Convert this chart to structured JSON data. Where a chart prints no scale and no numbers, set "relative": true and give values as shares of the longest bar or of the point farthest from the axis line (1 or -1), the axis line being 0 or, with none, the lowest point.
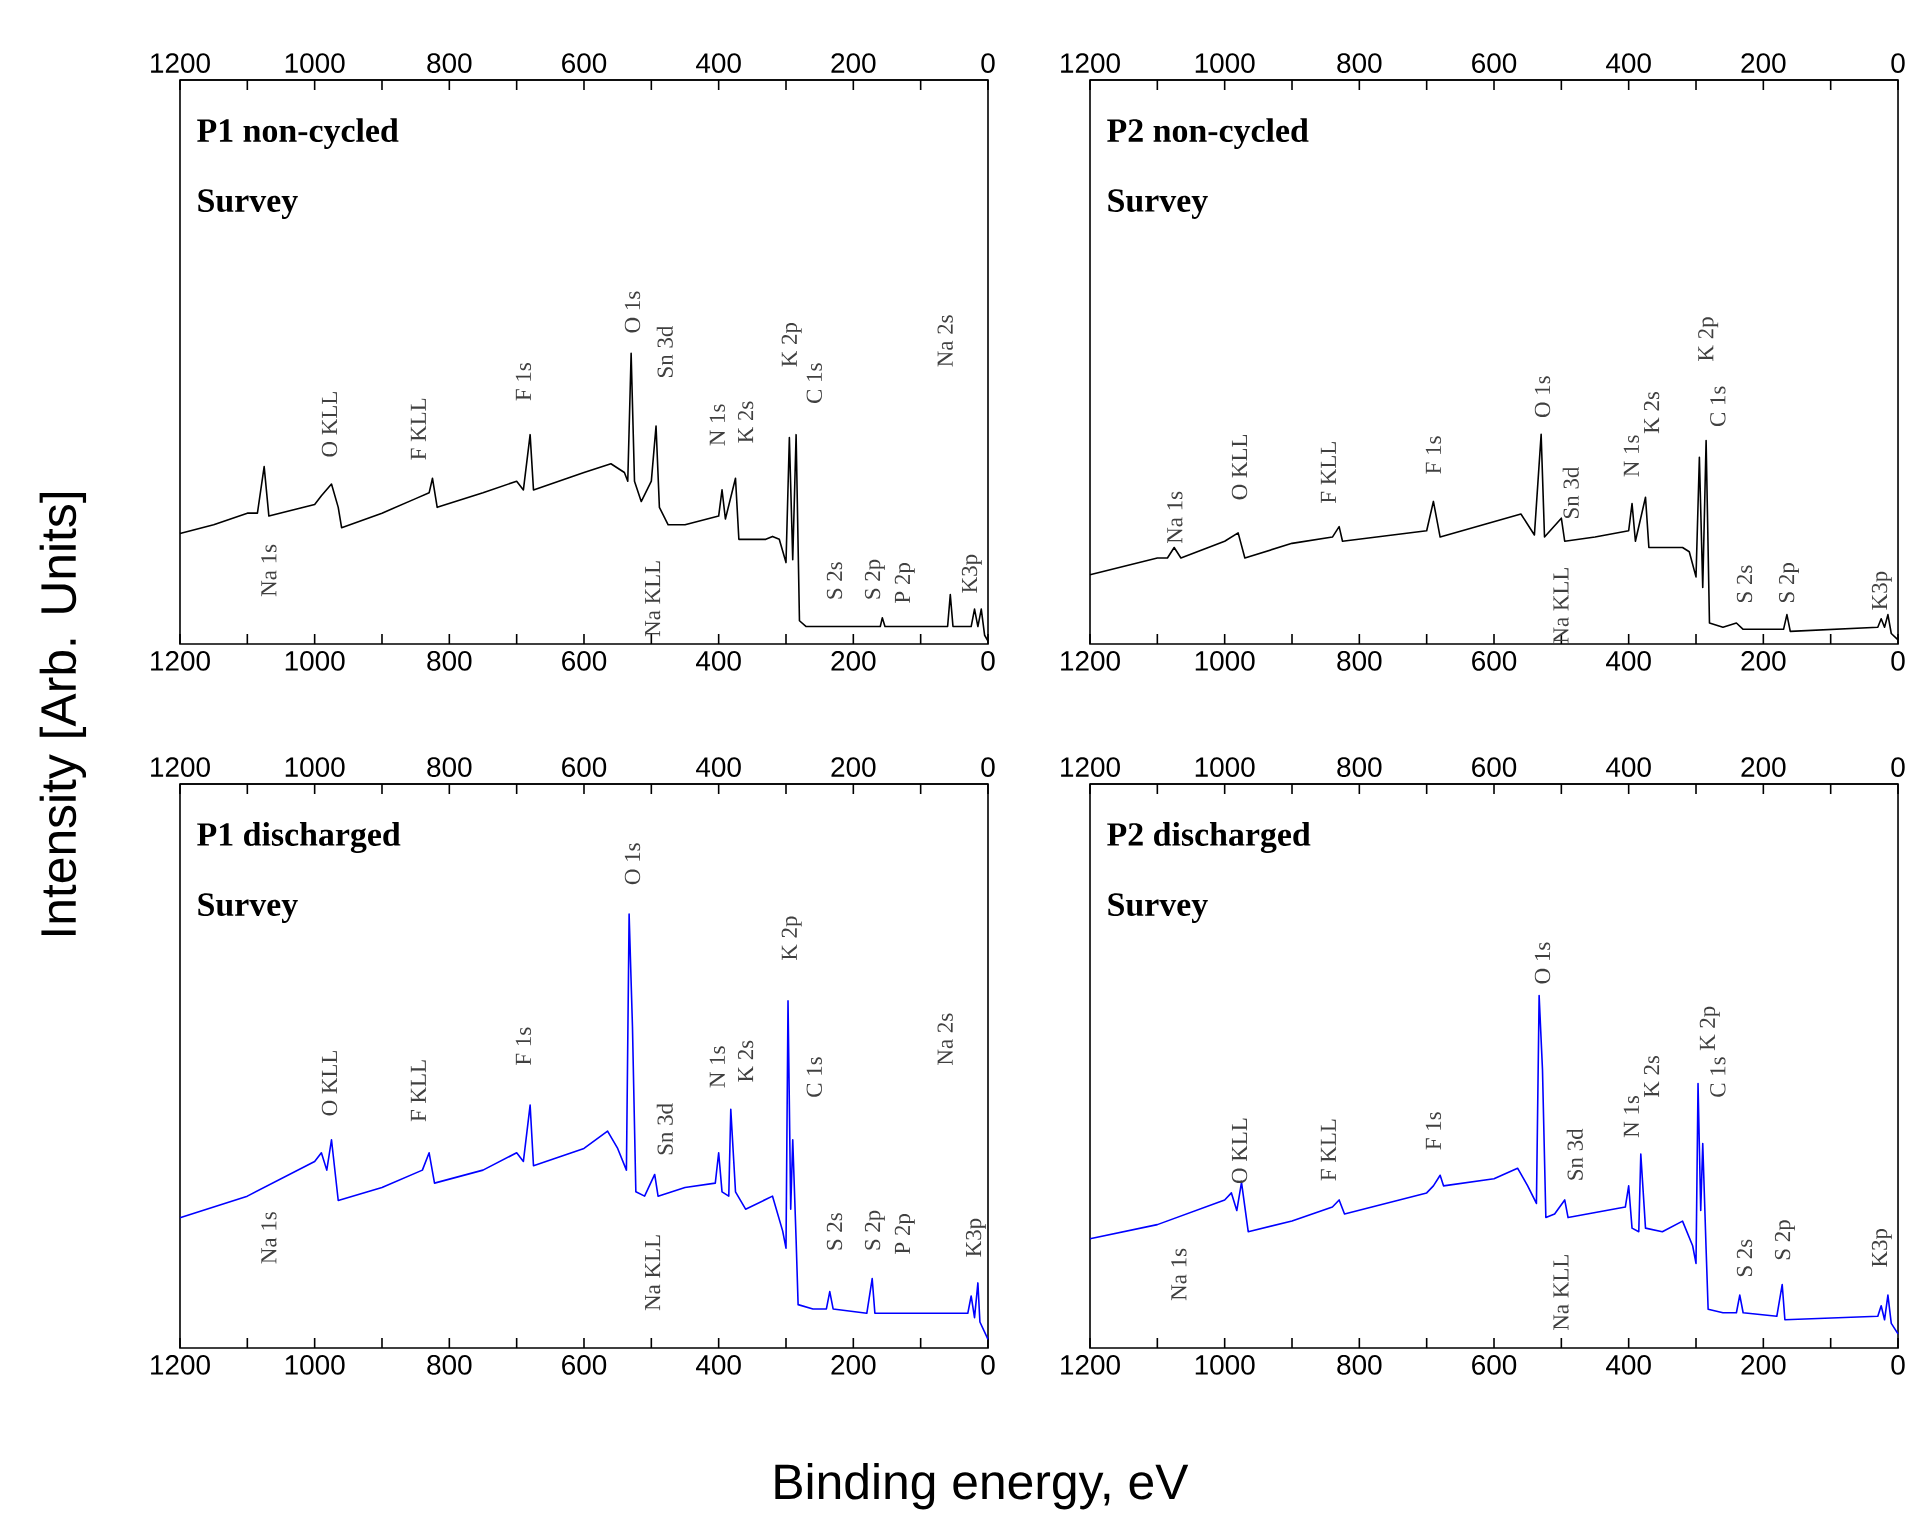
{
  "chart_data": [
    {
      "type": "line",
      "title": "P1 non-cycled",
      "subtitle": "Survey",
      "ylabel": "Intensity [Arb. Units]",
      "relative": true,
      "xlim": [
        1200,
        0
      ],
      "xticks": [
        1200,
        {
          "value": 1100,
          "label": null
        },
        1000,
        {
          "value": 900,
          "label": null
        },
        800,
        {
          "value": 700,
          "label": null
        },
        600,
        {
          "value": 500,
          "label": null
        },
        400,
        {
          "value": 300,
          "label": null
        },
        200,
        {
          "value": 100,
          "label": null
        },
        0
      ],
      "x2lim": [
        1200,
        0
      ],
      "x2ticks": [
        1200,
        {
          "value": 1100,
          "label": null
        },
        1000,
        {
          "value": 900,
          "label": null
        },
        800,
        {
          "value": 700,
          "label": null
        },
        600,
        {
          "value": 500,
          "label": null
        },
        400,
        {
          "value": 300,
          "label": null
        },
        200,
        {
          "value": 100,
          "label": null
        },
        0
      ],
      "series": [
        {
          "color": "#000000",
          "x": [
            1200,
            1150,
            1100,
            1085,
            1075,
            1068,
            1000,
            990,
            975,
            965,
            960,
            900,
            850,
            830,
            825,
            818,
            750,
            700,
            690,
            680,
            675,
            600,
            560,
            540,
            535,
            530,
            525,
            515,
            500,
            493,
            488,
            475,
            450,
            400,
            395,
            390,
            375,
            370,
            330,
            320,
            310,
            300,
            295,
            290,
            285,
            280,
            270,
            200,
            160,
            157,
            153,
            60,
            56,
            52,
            25,
            20,
            15,
            10,
            5,
            0
          ],
          "values": [
            0.38,
            0.41,
            0.45,
            0.45,
            0.61,
            0.44,
            0.48,
            0.51,
            0.55,
            0.47,
            0.4,
            0.45,
            0.5,
            0.52,
            0.57,
            0.47,
            0.52,
            0.56,
            0.53,
            0.72,
            0.53,
            0.59,
            0.62,
            0.59,
            0.56,
            1.0,
            0.56,
            0.49,
            0.56,
            0.75,
            0.47,
            0.41,
            0.41,
            0.44,
            0.53,
            0.43,
            0.57,
            0.36,
            0.36,
            0.37,
            0.36,
            0.28,
            0.71,
            0.29,
            0.72,
            0.08,
            0.06,
            0.06,
            0.06,
            0.09,
            0.06,
            0.06,
            0.17,
            0.06,
            0.06,
            0.12,
            0.06,
            0.12,
            0.03,
            0.01
          ]
        }
      ],
      "annotations": [
        "Na 1s",
        "O KLL",
        "F KLL",
        "F 1s",
        "O 1s",
        "Sn 3d",
        "Na KLL",
        "N 1s",
        "K 2s",
        "K 2p",
        "C 1s",
        "S 2s",
        "S 2p",
        "P 2p",
        "Na 2s",
        "K3p"
      ]
    },
    {
      "type": "line",
      "title": "P2 non-cycled",
      "subtitle": "Survey",
      "relative": true,
      "xlim": [
        1200,
        0
      ],
      "xticks": [
        1200,
        {
          "value": 1100,
          "label": null
        },
        1000,
        {
          "value": 900,
          "label": null
        },
        800,
        {
          "value": 700,
          "label": null
        },
        600,
        {
          "value": 500,
          "label": null
        },
        400,
        {
          "value": 300,
          "label": null
        },
        200,
        {
          "value": 100,
          "label": null
        },
        0
      ],
      "x2lim": [
        1200,
        0
      ],
      "x2ticks": [
        1200,
        {
          "value": 1100,
          "label": null
        },
        1000,
        {
          "value": 900,
          "label": null
        },
        800,
        {
          "value": 700,
          "label": null
        },
        600,
        {
          "value": 500,
          "label": null
        },
        400,
        {
          "value": 300,
          "label": null
        },
        200,
        {
          "value": 100,
          "label": null
        },
        0
      ],
      "series": [
        {
          "color": "#000000",
          "x": [
            1200,
            1100,
            1085,
            1075,
            1065,
            1000,
            980,
            970,
            900,
            840,
            830,
            825,
            700,
            690,
            680,
            560,
            540,
            530,
            525,
            500,
            495,
            450,
            400,
            395,
            390,
            375,
            370,
            320,
            310,
            300,
            295,
            290,
            285,
            280,
            260,
            240,
            230,
            170,
            165,
            160,
            30,
            25,
            20,
            15,
            10,
            0
          ],
          "values": [
            0.33,
            0.41,
            0.41,
            0.46,
            0.41,
            0.49,
            0.53,
            0.41,
            0.48,
            0.51,
            0.56,
            0.49,
            0.54,
            0.68,
            0.51,
            0.62,
            0.52,
            1.0,
            0.51,
            0.6,
            0.49,
            0.51,
            0.54,
            0.67,
            0.49,
            0.7,
            0.46,
            0.46,
            0.44,
            0.32,
            0.89,
            0.27,
            0.97,
            0.1,
            0.08,
            0.1,
            0.07,
            0.07,
            0.14,
            0.06,
            0.08,
            0.12,
            0.08,
            0.14,
            0.05,
            0.02
          ]
        }
      ],
      "annotations": [
        "Na 1s",
        "O KLL",
        "F KLL",
        "F 1s",
        "O 1s",
        "Sn 3d",
        "Na KLL",
        "N 1s",
        "K 2s",
        "C 1s",
        "K 2p",
        "S 2s",
        "S 2p",
        "K3p"
      ]
    },
    {
      "type": "line",
      "title": "P1 discharged",
      "subtitle": "Survey",
      "xlabel": "Binding energy, eV",
      "relative": true,
      "xlim": [
        1200,
        0
      ],
      "xticks": [
        1200,
        {
          "value": 1100,
          "label": null
        },
        1000,
        {
          "value": 900,
          "label": null
        },
        800,
        {
          "value": 700,
          "label": null
        },
        600,
        {
          "value": 500,
          "label": null
        },
        400,
        {
          "value": 300,
          "label": null
        },
        200,
        {
          "value": 100,
          "label": null
        },
        0
      ],
      "x2lim": [
        1200,
        0
      ],
      "x2ticks": [
        1200,
        {
          "value": 1100,
          "label": null
        },
        1000,
        {
          "value": 900,
          "label": null
        },
        800,
        {
          "value": 700,
          "label": null
        },
        600,
        {
          "value": 500,
          "label": null
        },
        400,
        {
          "value": 300,
          "label": null
        },
        200,
        {
          "value": 100,
          "label": null
        },
        0
      ],
      "series": [
        {
          "color": "#0000ff",
          "x": [
            1200,
            1100,
            1000,
            990,
            982,
            975,
            965,
            900,
            840,
            830,
            822,
            750,
            700,
            690,
            680,
            675,
            600,
            565,
            550,
            537,
            533,
            528,
            523,
            510,
            495,
            490,
            450,
            405,
            400,
            395,
            385,
            382,
            375,
            360,
            320,
            305,
            300,
            297,
            293,
            290,
            285,
            282,
            260,
            240,
            235,
            230,
            180,
            172,
            168,
            100,
            30,
            25,
            20,
            15,
            12,
            0
          ],
          "values": [
            0.3,
            0.35,
            0.43,
            0.45,
            0.41,
            0.48,
            0.34,
            0.37,
            0.41,
            0.45,
            0.38,
            0.41,
            0.45,
            0.43,
            0.56,
            0.42,
            0.46,
            0.5,
            0.46,
            0.41,
            1.0,
            0.74,
            0.36,
            0.35,
            0.4,
            0.35,
            0.37,
            0.38,
            0.45,
            0.36,
            0.35,
            0.55,
            0.36,
            0.32,
            0.35,
            0.27,
            0.23,
            0.8,
            0.32,
            0.48,
            0.25,
            0.1,
            0.09,
            0.09,
            0.13,
            0.09,
            0.08,
            0.16,
            0.08,
            0.08,
            0.08,
            0.12,
            0.07,
            0.15,
            0.06,
            0.02
          ]
        }
      ],
      "annotations": [
        "Na 1s",
        "O KLL",
        "F KLL",
        "F 1s",
        "O 1s",
        "Sn 3d",
        "Na KLL",
        "N 1s",
        "K 2s",
        "K 2p",
        "C 1s",
        "S 2s",
        "S 2p",
        "P 2p",
        "Na 2s",
        "K3p"
      ]
    },
    {
      "type": "line",
      "title": "P2 discharged",
      "subtitle": "Survey",
      "relative": true,
      "xlim": [
        1200,
        0
      ],
      "xticks": [
        1200,
        {
          "value": 1100,
          "label": null
        },
        1000,
        {
          "value": 900,
          "label": null
        },
        800,
        {
          "value": 700,
          "label": null
        },
        600,
        {
          "value": 500,
          "label": null
        },
        400,
        {
          "value": 300,
          "label": null
        },
        200,
        {
          "value": 100,
          "label": null
        },
        0
      ],
      "x2lim": [
        1200,
        0
      ],
      "x2ticks": [
        1200,
        {
          "value": 1100,
          "label": null
        },
        1000,
        {
          "value": 900,
          "label": null
        },
        800,
        {
          "value": 700,
          "label": null
        },
        600,
        {
          "value": 500,
          "label": null
        },
        400,
        {
          "value": 300,
          "label": null
        },
        200,
        {
          "value": 100,
          "label": null
        },
        0
      ],
      "series": [
        {
          "color": "#0000ff",
          "x": [
            1200,
            1100,
            1000,
            990,
            982,
            975,
            965,
            900,
            840,
            830,
            822,
            700,
            690,
            680,
            675,
            600,
            565,
            550,
            537,
            533,
            528,
            523,
            510,
            495,
            490,
            405,
            400,
            395,
            385,
            382,
            375,
            350,
            320,
            305,
            300,
            297,
            293,
            290,
            285,
            282,
            260,
            240,
            235,
            230,
            180,
            172,
            168,
            30,
            25,
            20,
            15,
            10,
            0
          ],
          "values": [
            0.31,
            0.35,
            0.42,
            0.44,
            0.39,
            0.47,
            0.33,
            0.36,
            0.4,
            0.42,
            0.38,
            0.44,
            0.46,
            0.49,
            0.46,
            0.48,
            0.51,
            0.46,
            0.41,
            1.0,
            0.79,
            0.37,
            0.38,
            0.42,
            0.37,
            0.4,
            0.46,
            0.34,
            0.33,
            0.55,
            0.34,
            0.33,
            0.36,
            0.29,
            0.24,
            0.75,
            0.39,
            0.58,
            0.28,
            0.11,
            0.1,
            0.1,
            0.15,
            0.1,
            0.09,
            0.18,
            0.08,
            0.09,
            0.12,
            0.08,
            0.15,
            0.07,
            0.04
          ]
        }
      ],
      "annotations": [
        "Na 1s",
        "O KLL",
        "F KLL",
        "F 1s",
        "O 1s",
        "Sn 3d",
        "Na KLL",
        "N 1s",
        "K 2s",
        "K 2p",
        "C 1s",
        "S 2s",
        "S 2p",
        "K3p"
      ]
    }
  ]
}
